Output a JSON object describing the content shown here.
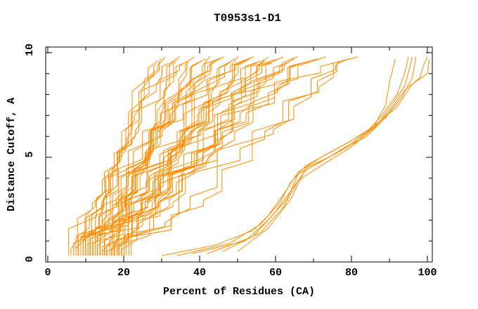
{
  "page": {
    "background": "#ffffff"
  },
  "chart_data": {
    "type": "line",
    "title": "T0953s1-D1",
    "xlabel": "Percent of Residues (CA)",
    "ylabel": "Distance Cutoff, A",
    "xlim": [
      0,
      101.3
    ],
    "ylim": [
      0,
      10.27
    ],
    "x_major_ticks": [
      0,
      20,
      40,
      60,
      80,
      100
    ],
    "x_minor_ticks": [
      10,
      30,
      50,
      70,
      90
    ],
    "x_tick_labels": [
      "0",
      "20",
      "40",
      "60",
      "80",
      "100"
    ],
    "y_major_ticks": [
      0,
      5,
      10
    ],
    "y_minor_ticks": [
      1,
      2,
      3,
      4,
      6,
      7,
      8,
      9
    ],
    "y_tick_labels": [
      "0",
      "5",
      "10"
    ],
    "grid": false,
    "legend": false,
    "curve_color": "#ff8c00",
    "axis_color": "#000000",
    "num_model_curves": 54,
    "main_curves_format": [
      "start_percent_at_0.3A",
      "percent_at_top_cutoff",
      "shape_exponent",
      "top_cutoff_A"
    ],
    "main_curves": [
      [
        5.5,
        28.0,
        0.7,
        9.5
      ],
      [
        7.4,
        29.0,
        0.85,
        9.6
      ],
      [
        9.3,
        29.9,
        1.0,
        9.7
      ],
      [
        11.1,
        30.9,
        1.15,
        9.8
      ],
      [
        13.0,
        31.9,
        1.3,
        9.5
      ],
      [
        14.9,
        32.9,
        0.7,
        9.6
      ],
      [
        16.8,
        33.8,
        0.85,
        9.7
      ],
      [
        18.7,
        34.8,
        1.0,
        9.8
      ],
      [
        6.1,
        35.8,
        1.15,
        9.5
      ],
      [
        8.0,
        36.7,
        1.3,
        9.6
      ],
      [
        9.9,
        37.7,
        0.7,
        9.7
      ],
      [
        11.8,
        38.7,
        0.85,
        9.8
      ],
      [
        13.7,
        39.6,
        1.0,
        9.5
      ],
      [
        15.5,
        40.6,
        1.15,
        9.6
      ],
      [
        17.4,
        41.6,
        1.3,
        9.7
      ],
      [
        19.3,
        42.6,
        0.7,
        9.8
      ],
      [
        6.8,
        43.5,
        0.85,
        9.5
      ],
      [
        8.7,
        44.5,
        1.0,
        9.6
      ],
      [
        10.6,
        45.5,
        1.15,
        9.7
      ],
      [
        12.5,
        46.4,
        1.3,
        9.8
      ],
      [
        14.4,
        47.4,
        0.7,
        9.5
      ],
      [
        16.3,
        48.4,
        0.85,
        9.6
      ],
      [
        18.2,
        49.3,
        1.0,
        9.7
      ],
      [
        20.1,
        50.3,
        1.15,
        9.8
      ],
      [
        7.4,
        51.3,
        1.3,
        9.5
      ],
      [
        9.3,
        52.3,
        0.7,
        9.6
      ],
      [
        11.2,
        53.2,
        0.85,
        9.7
      ],
      [
        13.1,
        54.2,
        1.0,
        9.8
      ],
      [
        15.0,
        55.2,
        1.15,
        9.5
      ],
      [
        16.9,
        56.1,
        1.3,
        9.6
      ],
      [
        18.8,
        57.1,
        0.7,
        9.7
      ],
      [
        20.7,
        58.1,
        0.85,
        9.8
      ],
      [
        8.1,
        59.0,
        1.0,
        9.5
      ],
      [
        10.0,
        60.0,
        1.15,
        9.6
      ],
      [
        11.9,
        61.0,
        1.3,
        9.7
      ],
      [
        13.8,
        62.0,
        0.7,
        9.8
      ],
      [
        15.7,
        62.9,
        0.85,
        9.5
      ],
      [
        17.6,
        63.9,
        1.0,
        9.6
      ],
      [
        19.5,
        64.9,
        1.15,
        9.7
      ],
      [
        21.4,
        65.8,
        1.3,
        9.8
      ],
      [
        8.7,
        67.0,
        0.7,
        9.5
      ],
      [
        10.6,
        69.1,
        0.85,
        9.6
      ],
      [
        12.5,
        71.2,
        1.0,
        9.7
      ],
      [
        14.4,
        73.3,
        1.15,
        9.8
      ],
      [
        16.3,
        75.4,
        1.3,
        9.5
      ],
      [
        18.2,
        77.5,
        0.7,
        9.6
      ],
      [
        20.1,
        79.6,
        0.85,
        9.7
      ],
      [
        22.0,
        81.7,
        1.0,
        9.8
      ]
    ],
    "outlier_curves_format": "vertices [percent_of_residues, distance_cutoff_A]",
    "outlier_curves": [
      [
        [
          30,
          0.3
        ],
        [
          44,
          0.8
        ],
        [
          54,
          1.5
        ],
        [
          58,
          2.2
        ],
        [
          62,
          3.2
        ],
        [
          66,
          4.3
        ],
        [
          72,
          5.0
        ],
        [
          80,
          5.8
        ],
        [
          86,
          6.5
        ],
        [
          89,
          7.5
        ],
        [
          90,
          8.6
        ],
        [
          91,
          9.3
        ],
        [
          91.5,
          9.7
        ]
      ],
      [
        [
          34,
          0.3
        ],
        [
          48,
          0.9
        ],
        [
          56,
          1.8
        ],
        [
          61,
          2.8
        ],
        [
          64,
          3.8
        ],
        [
          68,
          4.6
        ],
        [
          76,
          5.4
        ],
        [
          84,
          6.2
        ],
        [
          88,
          7.0
        ],
        [
          92,
          8.0
        ],
        [
          94,
          9.0
        ],
        [
          95,
          9.8
        ]
      ],
      [
        [
          38,
          0.4
        ],
        [
          52,
          1.0
        ],
        [
          58,
          2.0
        ],
        [
          63,
          3.0
        ],
        [
          66,
          4.2
        ],
        [
          72,
          4.8
        ],
        [
          80,
          5.6
        ],
        [
          87,
          6.6
        ],
        [
          91,
          7.6
        ],
        [
          94,
          8.4
        ],
        [
          95.5,
          9.4
        ],
        [
          96,
          9.8
        ]
      ],
      [
        [
          42,
          0.4
        ],
        [
          54,
          1.2
        ],
        [
          60,
          2.4
        ],
        [
          64,
          3.4
        ],
        [
          68,
          4.4
        ],
        [
          76,
          5.2
        ],
        [
          84,
          6.0
        ],
        [
          89,
          6.9
        ],
        [
          93,
          7.8
        ],
        [
          96,
          8.8
        ],
        [
          97,
          9.8
        ]
      ],
      [
        [
          46,
          0.5
        ],
        [
          56,
          1.4
        ],
        [
          62,
          2.6
        ],
        [
          66,
          3.9
        ],
        [
          72,
          4.6
        ],
        [
          80,
          5.5
        ],
        [
          86,
          6.4
        ],
        [
          90,
          7.2
        ],
        [
          94,
          8.2
        ],
        [
          98,
          8.8
        ],
        [
          99,
          9.4
        ],
        [
          100,
          9.8
        ]
      ],
      [
        [
          50,
          0.5
        ],
        [
          58,
          1.6
        ],
        [
          64,
          3.0
        ],
        [
          68,
          4.5
        ],
        [
          74,
          5.0
        ],
        [
          82,
          5.9
        ],
        [
          88,
          6.8
        ],
        [
          92,
          7.4
        ],
        [
          96,
          8.5
        ],
        [
          100,
          9.0
        ],
        [
          100.5,
          9.7
        ]
      ]
    ]
  }
}
